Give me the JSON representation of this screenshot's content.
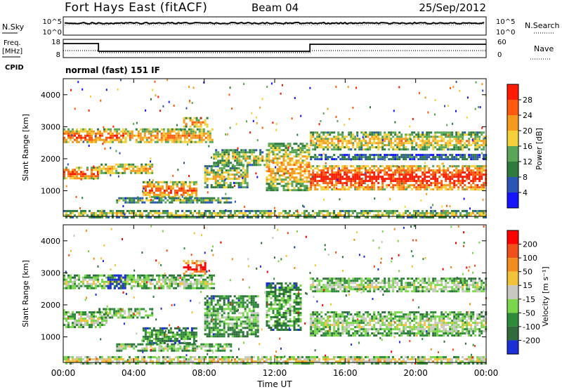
{
  "header": {
    "station": "Fort Hays East (fitACF)",
    "beam": "Beam 04",
    "date": "25/Sep/2012"
  },
  "status_panels": {
    "nsky_label": "N.Sky",
    "nsearch_label": "N.Search",
    "noise_ticks": [
      "10^5",
      "10^0"
    ],
    "freq_label": "Freq.",
    "freq_unit": "[MHz]",
    "freq_ticks": [
      "18",
      "8"
    ],
    "nave_label": "Nave",
    "nave_ticks": [
      "60",
      "0"
    ],
    "cpid_label": "CPID",
    "cpid_text": "normal (fast) 151 IF"
  },
  "chart_data": [
    {
      "type": "heatmap",
      "name": "power",
      "ylabel": "Slant Range [km]",
      "xlabel": "",
      "xlim": [
        0,
        24
      ],
      "ylim": [
        200,
        4500
      ],
      "y_ticks": [
        "1000",
        "2000",
        "3000",
        "4000"
      ],
      "colorbar": {
        "label": "Power [dB]",
        "ticks": [
          "4",
          "8",
          "12",
          "16",
          "20",
          "24",
          "28"
        ],
        "colors": [
          "#1414ff",
          "#2b55b5",
          "#2f7a3d",
          "#59a657",
          "#f4d03a",
          "#f29b1e",
          "#ff5a10",
          "#ff1a00"
        ]
      },
      "bands": [
        {
          "t0": 0.0,
          "t1": 3.5,
          "r0": 2500,
          "r1": 2950,
          "level": 0.8
        },
        {
          "t0": 3.5,
          "t1": 8.5,
          "r0": 2500,
          "r1": 2950,
          "level": 0.7
        },
        {
          "t0": 6.8,
          "t1": 8.2,
          "r0": 3000,
          "r1": 3300,
          "level": 0.7
        },
        {
          "t0": 0.0,
          "t1": 2.0,
          "r0": 1400,
          "r1": 1750,
          "level": 0.85
        },
        {
          "t0": 2.0,
          "t1": 5.0,
          "r0": 1550,
          "r1": 1850,
          "level": 0.65
        },
        {
          "t0": 4.5,
          "t1": 7.5,
          "r0": 800,
          "r1": 1300,
          "level": 0.8
        },
        {
          "t0": 8.0,
          "t1": 10.5,
          "r0": 1100,
          "r1": 1800,
          "level": 0.55
        },
        {
          "t0": 8.5,
          "t1": 11.5,
          "r0": 1800,
          "r1": 2300,
          "level": 0.5
        },
        {
          "t0": 3.0,
          "t1": 9.5,
          "r0": 650,
          "r1": 800,
          "level": 0.45
        },
        {
          "t0": 11.5,
          "t1": 14.0,
          "r0": 1000,
          "r1": 2500,
          "level": 0.65
        },
        {
          "t0": 14.0,
          "t1": 24.0,
          "r0": 1050,
          "r1": 1800,
          "level": 0.95
        },
        {
          "t0": 14.0,
          "t1": 24.0,
          "r0": 2300,
          "r1": 2850,
          "level": 0.6
        },
        {
          "t0": 14.0,
          "t1": 24.0,
          "r0": 2000,
          "r1": 2150,
          "level": 0.3
        },
        {
          "t0": 0.0,
          "t1": 24.0,
          "r0": 200,
          "r1": 400,
          "level": 0.55
        }
      ]
    },
    {
      "type": "heatmap",
      "name": "velocity",
      "ylabel": "Slant Range [km]",
      "xlabel": "Time UT",
      "xlim": [
        0,
        24
      ],
      "ylim": [
        200,
        4500
      ],
      "x_ticks": [
        "00:00",
        "04:00",
        "08:00",
        "12:00",
        "16:00",
        "20:00",
        "00:00"
      ],
      "y_ticks": [
        "1000",
        "2000",
        "3000",
        "4000"
      ],
      "colorbar": {
        "label": "Velocity [m s⁻¹]",
        "ticks": [
          "200",
          "100",
          "50",
          "15",
          "-15",
          "-50",
          "-100",
          "-200"
        ],
        "colors": [
          "#1a2fd6",
          "#2f6b3c",
          "#2e8b3a",
          "#7ad64a",
          "#c8c8c0",
          "#f2c23a",
          "#f28c1e",
          "#f0501a",
          "#ff0000"
        ]
      },
      "bands": [
        {
          "t0": 0.0,
          "t1": 8.5,
          "r0": 2500,
          "r1": 2950,
          "level": 0.45
        },
        {
          "t0": 2.5,
          "t1": 3.5,
          "r0": 2500,
          "r1": 2950,
          "level": 0.05
        },
        {
          "t0": 6.8,
          "t1": 8.0,
          "r0": 3000,
          "r1": 3400,
          "level": 1.0
        },
        {
          "t0": 0.0,
          "t1": 2.5,
          "r0": 1300,
          "r1": 1800,
          "level": 0.45
        },
        {
          "t0": 2.0,
          "t1": 5.0,
          "r0": 1600,
          "r1": 1900,
          "level": 0.45
        },
        {
          "t0": 4.5,
          "t1": 7.5,
          "r0": 800,
          "r1": 1300,
          "level": 0.3
        },
        {
          "t0": 8.0,
          "t1": 11.0,
          "r0": 1000,
          "r1": 2300,
          "level": 0.35
        },
        {
          "t0": 3.0,
          "t1": 9.5,
          "r0": 600,
          "r1": 800,
          "level": 0.45
        },
        {
          "t0": 11.5,
          "t1": 13.5,
          "r0": 1200,
          "r1": 2700,
          "level": 0.32
        },
        {
          "t0": 14.0,
          "t1": 24.0,
          "r0": 1050,
          "r1": 1800,
          "level": 0.45
        },
        {
          "t0": 14.0,
          "t1": 24.0,
          "r0": 2400,
          "r1": 2850,
          "level": 0.45
        },
        {
          "t0": 0.0,
          "t1": 24.0,
          "r0": 200,
          "r1": 400,
          "level": 0.6
        }
      ]
    }
  ]
}
